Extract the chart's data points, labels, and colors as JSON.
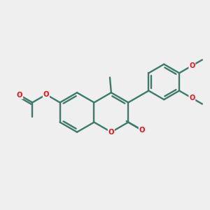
{
  "background_color": "#efefef",
  "bond_color": "#3d7a6a",
  "oxygen_color": "#ee1111",
  "line_width": 1.7,
  "figsize": [
    3.0,
    3.0
  ],
  "dpi": 100,
  "xlim": [
    1.5,
    8.5
  ],
  "ylim": [
    2.8,
    7.8
  ]
}
